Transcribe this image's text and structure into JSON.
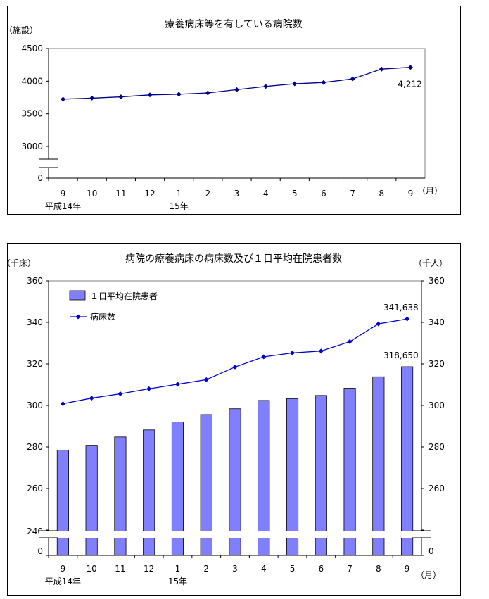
{
  "chart_data": [
    {
      "type": "line",
      "title": "療養病床等を有している病院数",
      "yunit": "（施設）",
      "xunit": "（月）",
      "categories": [
        "9",
        "10",
        "11",
        "12",
        "1",
        "2",
        "3",
        "4",
        "5",
        "6",
        "7",
        "8",
        "9"
      ],
      "year_labels": [
        {
          "text": "平成14年",
          "category_index": 0
        },
        {
          "text": "15年",
          "category_index": 4
        }
      ],
      "yticks": [
        "0",
        "3000",
        "3500",
        "4000",
        "4500"
      ],
      "ylim": [
        3000,
        4500
      ],
      "axis_break": true,
      "series": [
        {
          "values": [
            3725,
            3740,
            3760,
            3790,
            3800,
            3820,
            3870,
            3920,
            3960,
            3980,
            4035,
            4185,
            4212
          ],
          "color": "#00008B"
        }
      ],
      "annotations": [
        {
          "text": "4,212",
          "category_index": 12
        }
      ]
    },
    {
      "type": "bar",
      "title": "病院の療養病床の病床数及び１日平均在院患者数",
      "yunit_left": "（千床）",
      "yunit_right": "（千人）",
      "xunit": "（月）",
      "categories": [
        "9",
        "10",
        "11",
        "12",
        "1",
        "2",
        "3",
        "4",
        "5",
        "6",
        "7",
        "8",
        "9"
      ],
      "year_labels": [
        {
          "text": "平成14年",
          "category_index": 0
        },
        {
          "text": "15年",
          "category_index": 4
        }
      ],
      "yticks": [
        "0",
        "240",
        "260",
        "280",
        "300",
        "320",
        "340",
        "360"
      ],
      "ylim": [
        240,
        360
      ],
      "axis_break": true,
      "legend": [
        "１日平均在院患者",
        "病床数"
      ],
      "legend_position": "top-left",
      "series": [
        {
          "name": "１日平均在院患者",
          "kind": "bar",
          "color": "#8080FF",
          "values": [
            278.5,
            280.8,
            284.8,
            288.2,
            292.0,
            295.6,
            298.4,
            302.4,
            303.3,
            304.8,
            308.3,
            313.8,
            318.65
          ]
        },
        {
          "name": "病床数",
          "kind": "line",
          "color": "#0000CC",
          "values": [
            300.8,
            303.5,
            305.6,
            308.0,
            310.2,
            312.4,
            318.5,
            323.4,
            325.3,
            326.2,
            330.7,
            339.3,
            341.638
          ]
        }
      ],
      "annotations": [
        {
          "text": "341,638",
          "series": 1,
          "category_index": 12
        },
        {
          "text": "318,650",
          "series": 0,
          "category_index": 12
        }
      ]
    }
  ]
}
